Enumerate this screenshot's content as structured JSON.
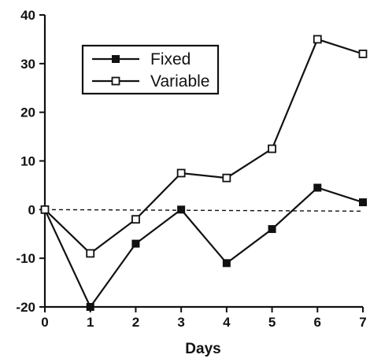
{
  "chart_data": {
    "type": "line",
    "title": "",
    "xlabel": "Days",
    "ylabel": "",
    "x": [
      0,
      1,
      2,
      3,
      4,
      5,
      6,
      7
    ],
    "xlim": [
      0,
      7
    ],
    "ylim": [
      -20,
      40
    ],
    "x_ticks": [
      "0",
      "1",
      "2",
      "3",
      "4",
      "5",
      "6",
      "7"
    ],
    "y_ticks": [
      "-20",
      "-10",
      "0",
      "10",
      "20",
      "30",
      "40"
    ],
    "grid": false,
    "legend_position": "top-left",
    "reference_line": {
      "y": 0,
      "style": "dashed"
    },
    "series": [
      {
        "name": "Fixed",
        "marker": "filled-square",
        "color": "#111111",
        "values": [
          0,
          -20,
          -7,
          0,
          -11,
          -4,
          4.5,
          1.5
        ]
      },
      {
        "name": "Variable",
        "marker": "open-square",
        "color": "#111111",
        "values": [
          0,
          -9,
          -2,
          7.5,
          6.5,
          12.5,
          35,
          32
        ]
      }
    ]
  }
}
